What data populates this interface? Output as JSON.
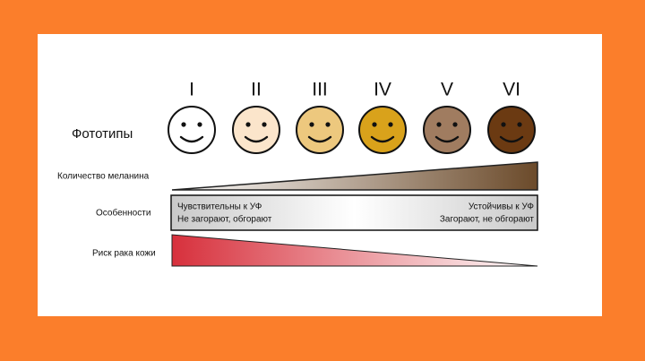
{
  "phototypes_label": "Фототипы",
  "numerals": [
    "I",
    "II",
    "III",
    "IV",
    "V",
    "VI"
  ],
  "melanin_label": "Количество меланина",
  "features_label": "Особенности",
  "features": {
    "left": [
      "Чувствительны к УФ",
      "Не загорают, обгорают"
    ],
    "right": [
      "Устойчивы к УФ",
      "Загорают, не обгорают"
    ]
  },
  "risk_label": "Риск рака кожи"
}
